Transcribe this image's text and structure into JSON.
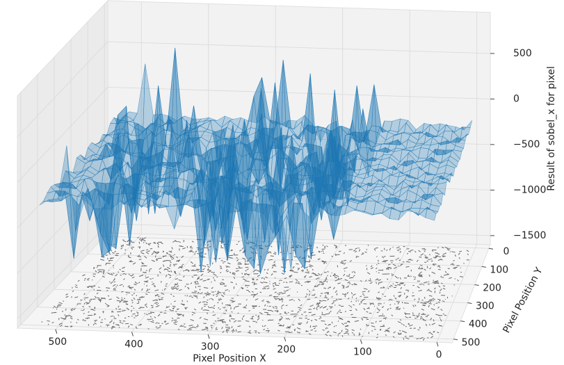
{
  "chart_data": {
    "type": "surface3d",
    "xlabel": "Pixel Position X",
    "ylabel": "Pixel Position Y",
    "zlabel": "Result of sobel_x for pixel",
    "xlim": [
      -20,
      550
    ],
    "ylim": [
      -20,
      520
    ],
    "zlim": [
      -1600,
      950
    ],
    "xticks": [
      0,
      100,
      200,
      300,
      400,
      500
    ],
    "yticks": [
      0,
      100,
      200,
      300,
      400,
      500
    ],
    "zticks": [
      {
        "value": -1500,
        "label": "−1500"
      },
      {
        "value": -1000,
        "label": "−1000"
      },
      {
        "value": -500,
        "label": "−500"
      },
      0,
      500
    ],
    "grid": true,
    "color": "#1f77b4"
  }
}
